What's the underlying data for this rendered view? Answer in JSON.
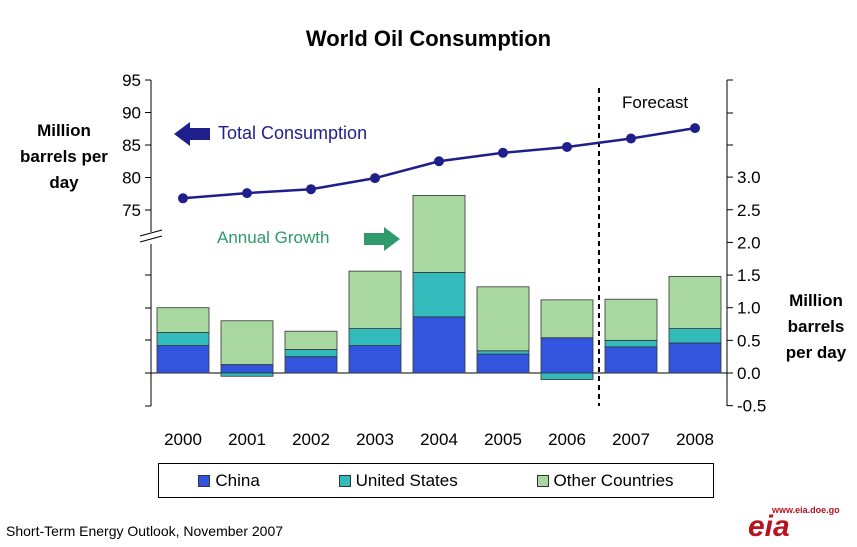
{
  "chart_data": {
    "type": "bar",
    "title": "World Oil Consumption",
    "categories": [
      "2000",
      "2001",
      "2002",
      "2003",
      "2004",
      "2005",
      "2006",
      "2007",
      "2008"
    ],
    "forecast_from": "2007",
    "forecast_label": "Forecast",
    "stacked_series": [
      {
        "name": "China",
        "color": "#3355dd",
        "values": [
          0.42,
          0.13,
          0.25,
          0.42,
          0.86,
          0.29,
          0.54,
          0.4,
          0.46
        ]
      },
      {
        "name": "United States",
        "color": "#33bbbb",
        "values": [
          0.2,
          -0.05,
          0.11,
          0.26,
          0.68,
          0.05,
          -0.1,
          0.1,
          0.22
        ]
      },
      {
        "name": "Other Countries",
        "color": "#a8d8a0",
        "values": [
          0.38,
          0.67,
          0.28,
          0.88,
          1.18,
          0.98,
          0.58,
          0.63,
          0.8
        ]
      }
    ],
    "total_consumption": {
      "name": "Total Consumption",
      "color": "#1f1f8c",
      "values": [
        76.8,
        77.6,
        78.2,
        79.9,
        82.5,
        83.8,
        84.7,
        86.0,
        87.6
      ]
    },
    "left_axis": {
      "label": "Million barrels per day",
      "ticks": [
        75,
        80,
        85,
        90,
        95
      ],
      "range": [
        70,
        95
      ]
    },
    "right_axis": {
      "label": "Million barrels per day",
      "ticks": [
        -0.5,
        0.0,
        0.5,
        1.0,
        1.5,
        2.0,
        2.5,
        3.0
      ],
      "range": [
        -0.5,
        3.0
      ]
    },
    "annotations": {
      "total": "Total Consumption",
      "growth": "Annual Growth"
    }
  },
  "tick_labels_left": [
    "75",
    "80",
    "85",
    "90",
    "95"
  ],
  "tick_labels_right": [
    "-0.5",
    "0.0",
    "0.5",
    "1.0",
    "1.5",
    "2.0",
    "2.5",
    "3.0"
  ],
  "labels": {
    "left_axis": "Million barrels per day",
    "right_axis": "Million barrels per day",
    "forecast": "Forecast",
    "total": "Total Consumption",
    "growth": "Annual Growth"
  },
  "legend": [
    "China",
    "United States",
    "Other Countries"
  ],
  "source": "Short-Term Energy Outlook, November 2007",
  "logo": {
    "text": "eia",
    "url": "www.eia.doe.go"
  }
}
